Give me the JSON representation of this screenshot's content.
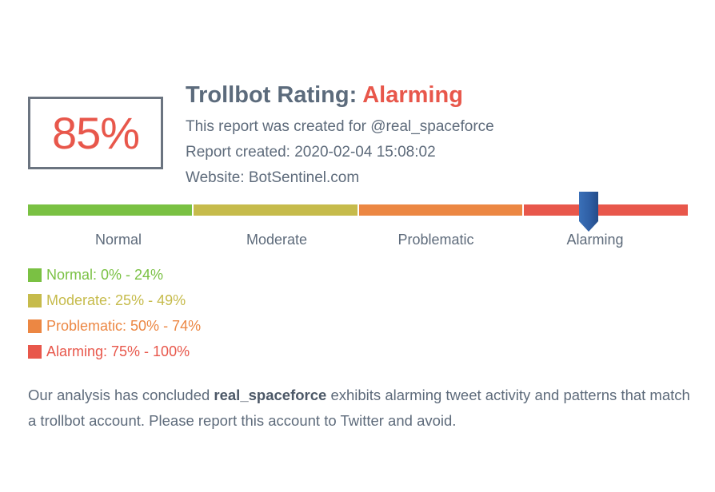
{
  "score": {
    "value": "85%",
    "level": 0.85
  },
  "header": {
    "title_prefix": "Trollbot Rating:",
    "rating": "Alarming",
    "created_for": "This report was created for @real_spaceforce",
    "created_at": "Report created: 2020-02-04 15:08:02",
    "website": "Website: BotSentinel.com"
  },
  "scale": {
    "segments": [
      {
        "label": "Normal",
        "color": "#7ac143"
      },
      {
        "label": "Moderate",
        "color": "#c6bb4b"
      },
      {
        "label": "Problematic",
        "color": "#ec8743"
      },
      {
        "label": "Alarming",
        "color": "#e8574b"
      }
    ],
    "marker_color": "#2f63a8"
  },
  "legend": [
    {
      "text": "Normal: 0% - 24%",
      "color": "#7ac143"
    },
    {
      "text": "Moderate: 25% - 49%",
      "color": "#c6bb4b"
    },
    {
      "text": "Problematic: 50% - 74%",
      "color": "#ec8743"
    },
    {
      "text": "Alarming: 75% - 100%",
      "color": "#e8574b"
    }
  ],
  "summary": {
    "before": "Our analysis has concluded ",
    "account": "real_spaceforce",
    "after": " exhibits alarming tweet activity and patterns that match a trollbot account. Please report this account to Twitter and avoid."
  }
}
